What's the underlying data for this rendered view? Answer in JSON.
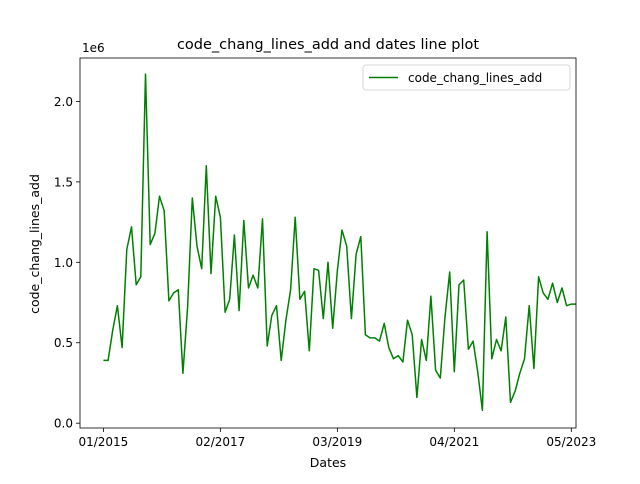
{
  "chart_data": {
    "type": "line",
    "title": "code_chang_lines_add and dates line plot",
    "xlabel": "Dates",
    "ylabel": "code_chang_lines_add",
    "y_offset_label": "1e6",
    "x_tick_labels": [
      "01/2015",
      "02/2017",
      "03/2019",
      "04/2021",
      "05/2023"
    ],
    "x_tick_dates": [
      "2015-01",
      "2017-02",
      "2019-03",
      "2021-04",
      "2023-05"
    ],
    "x_range": [
      "2014-08",
      "2023-06"
    ],
    "y_ticks": [
      0.0,
      0.5,
      1.0,
      1.5,
      2.0
    ],
    "y_tick_labels": [
      "0.0",
      "0.5",
      "1.0",
      "1.5",
      "2.0"
    ],
    "y_scale_multiplier": 1000000,
    "ylim": [
      -0.03,
      2.27
    ],
    "grid": false,
    "legend_position": "top-right",
    "series": [
      {
        "name": "code_chang_lines_add",
        "color": "#008000",
        "x": [
          "2015-01",
          "2015-02",
          "2015-03",
          "2015-04",
          "2015-05",
          "2015-06",
          "2015-07",
          "2015-08",
          "2015-09",
          "2015-10",
          "2015-11",
          "2015-12",
          "2016-01",
          "2016-02",
          "2016-03",
          "2016-04",
          "2016-05",
          "2016-06",
          "2016-07",
          "2016-08",
          "2016-09",
          "2016-10",
          "2016-11",
          "2016-12",
          "2017-01",
          "2017-02",
          "2017-03",
          "2017-04",
          "2017-05",
          "2017-06",
          "2017-07",
          "2017-08",
          "2017-09",
          "2017-10",
          "2017-11",
          "2017-12",
          "2018-01",
          "2018-02",
          "2018-03",
          "2018-04",
          "2018-05",
          "2018-06",
          "2018-07",
          "2018-08",
          "2018-09",
          "2018-10",
          "2018-11",
          "2018-12",
          "2019-01",
          "2019-02",
          "2019-03",
          "2019-04",
          "2019-05",
          "2019-06",
          "2019-07",
          "2019-08",
          "2019-09",
          "2019-10",
          "2019-11",
          "2019-12",
          "2020-01",
          "2020-02",
          "2020-03",
          "2020-04",
          "2020-05",
          "2020-06",
          "2020-07",
          "2020-08",
          "2020-09",
          "2020-10",
          "2020-11",
          "2020-12",
          "2021-01",
          "2021-02",
          "2021-03",
          "2021-04",
          "2021-05",
          "2021-06",
          "2021-07",
          "2021-08",
          "2021-09",
          "2021-10",
          "2021-11",
          "2021-12",
          "2022-01",
          "2022-02",
          "2022-03",
          "2022-04",
          "2022-05",
          "2022-06",
          "2022-07",
          "2022-08",
          "2022-09",
          "2022-10",
          "2022-11",
          "2022-12",
          "2023-01",
          "2023-02",
          "2023-03",
          "2023-04",
          "2023-05",
          "2023-06"
        ],
        "y": [
          0.39,
          0.39,
          0.58,
          0.73,
          0.47,
          1.08,
          1.22,
          0.86,
          0.91,
          2.17,
          1.11,
          1.18,
          1.41,
          1.32,
          0.76,
          0.81,
          0.83,
          0.31,
          0.72,
          1.4,
          1.1,
          0.96,
          1.6,
          0.93,
          1.41,
          1.28,
          0.69,
          0.77,
          1.17,
          0.7,
          1.26,
          0.84,
          0.92,
          0.84,
          1.27,
          0.48,
          0.67,
          0.73,
          0.39,
          0.64,
          0.83,
          1.28,
          0.77,
          0.82,
          0.45,
          0.96,
          0.95,
          0.65,
          1.0,
          0.59,
          0.95,
          1.2,
          1.1,
          0.65,
          1.05,
          1.16,
          0.55,
          0.53,
          0.53,
          0.51,
          0.62,
          0.47,
          0.4,
          0.42,
          0.38,
          0.64,
          0.55,
          0.16,
          0.52,
          0.39,
          0.79,
          0.33,
          0.28,
          0.66,
          0.94,
          0.32,
          0.86,
          0.89,
          0.46,
          0.51,
          0.32,
          0.08,
          1.19,
          0.4,
          0.52,
          0.45,
          0.66,
          0.13,
          0.2,
          0.31,
          0.4,
          0.73,
          0.34,
          0.91,
          0.81,
          0.77,
          0.87,
          0.75,
          0.84,
          0.73,
          0.74,
          0.74
        ]
      }
    ]
  }
}
